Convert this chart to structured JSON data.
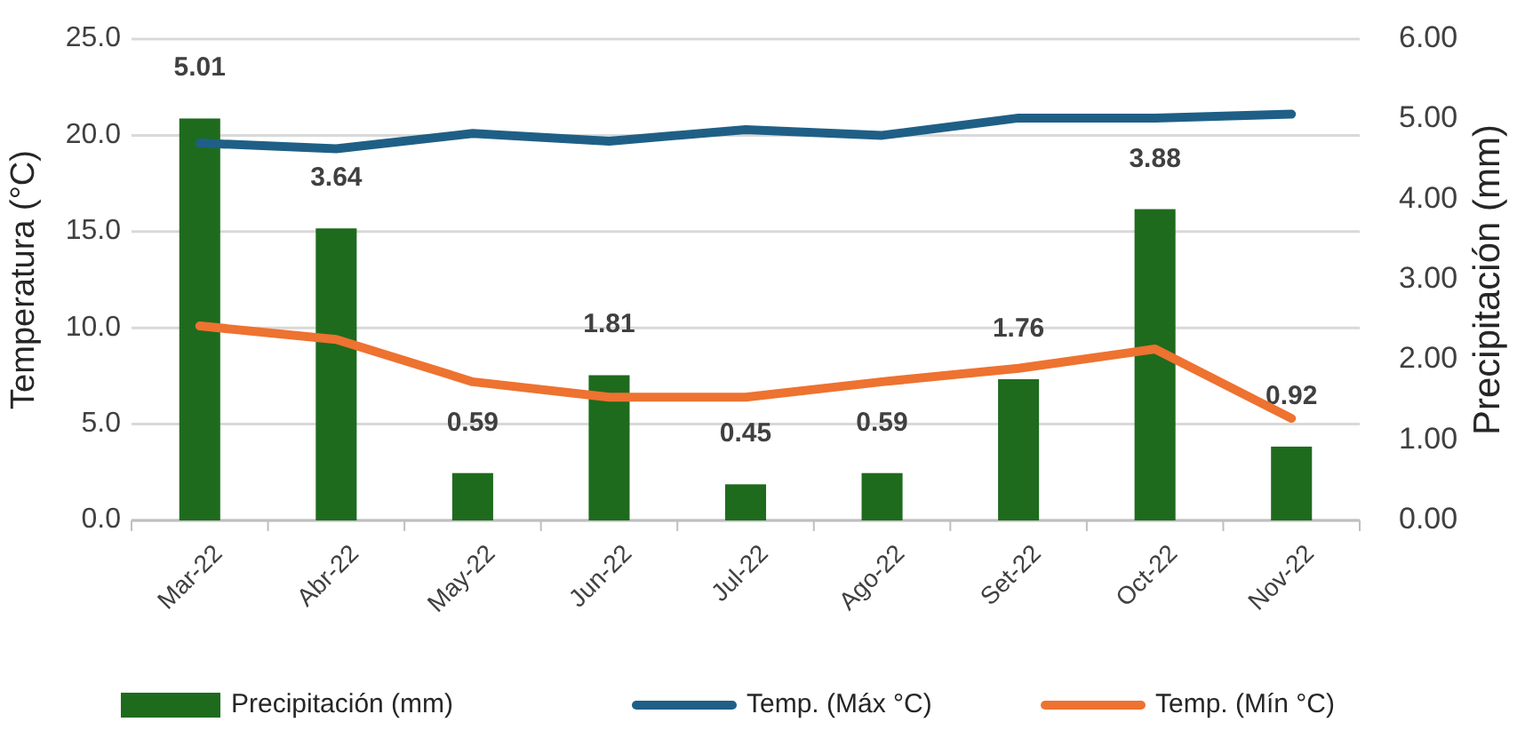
{
  "chart_data": {
    "type": "bar",
    "categories": [
      "Mar-22",
      "Abr-22",
      "May-22",
      "Jun-22",
      "Jul-22",
      "Ago-22",
      "Set-22",
      "Oct-22",
      "Nov-22"
    ],
    "ylabel": "Temperatura (°C)",
    "y2label": "Precipitación (mm)",
    "ylim": [
      0,
      25
    ],
    "yticks": [
      {
        "value": 0,
        "label": "0.0"
      },
      {
        "value": 5,
        "label": "5.0"
      },
      {
        "value": 10,
        "label": "10.0"
      },
      {
        "value": 15,
        "label": "15.0"
      },
      {
        "value": 20,
        "label": "20.0"
      },
      {
        "value": 25,
        "label": "25.0"
      }
    ],
    "y2lim": [
      0,
      6
    ],
    "y2ticks": [
      {
        "value": 0,
        "label": "0.00"
      },
      {
        "value": 1,
        "label": "1.00"
      },
      {
        "value": 2,
        "label": "2.00"
      },
      {
        "value": 3,
        "label": "3.00"
      },
      {
        "value": 4,
        "label": "4.00"
      },
      {
        "value": 5,
        "label": "5.00"
      },
      {
        "value": 6,
        "label": "6.00"
      }
    ],
    "grid": "y",
    "legend": "bottom",
    "series": [
      {
        "name": "Precipitación (mm)",
        "axis": "y2",
        "color": "#1e6b1e",
        "values": [
          5.01,
          3.64,
          0.59,
          1.81,
          0.45,
          0.59,
          1.76,
          3.88,
          0.92
        ],
        "value_labels": [
          "5.01",
          "3.64",
          "0.59",
          "1.81",
          "0.45",
          "0.59",
          "1.76",
          "3.88",
          "0.92"
        ]
      },
      {
        "name": "Temp. (Máx °C)",
        "type": "line",
        "color": "#1f5f86",
        "values": [
          19.6,
          19.3,
          20.1,
          19.7,
          20.3,
          20.0,
          20.9,
          20.9,
          21.1
        ]
      },
      {
        "name": "Temp. (Mín °C)",
        "type": "line",
        "color": "#ee7230",
        "values": [
          10.1,
          9.4,
          7.2,
          6.4,
          6.4,
          7.2,
          7.9,
          8.9,
          5.3
        ]
      }
    ]
  }
}
